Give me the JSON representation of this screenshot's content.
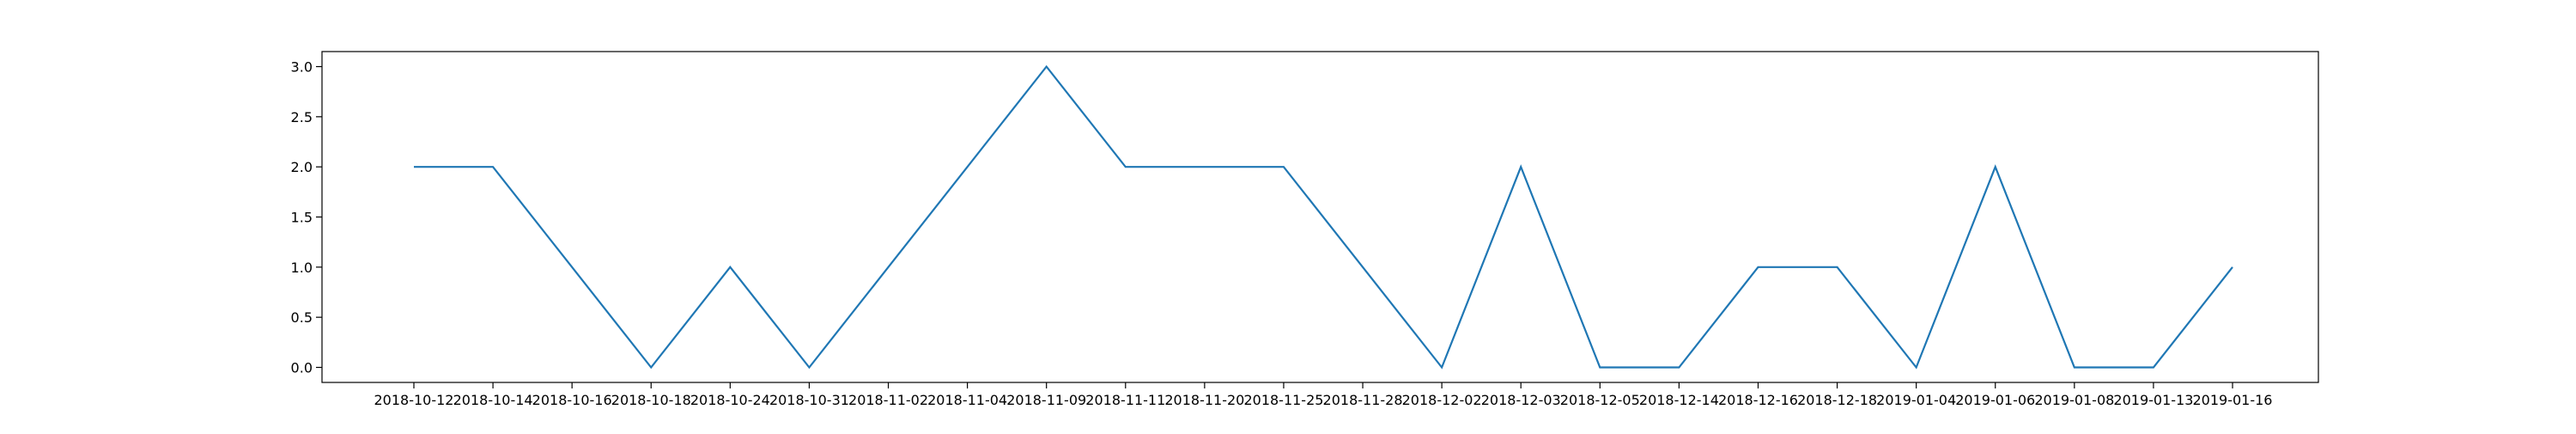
{
  "chart_data": {
    "type": "line",
    "categories": [
      "2018-10-12",
      "2018-10-14",
      "2018-10-16",
      "2018-10-18",
      "2018-10-24",
      "2018-10-31",
      "2018-11-02",
      "2018-11-04",
      "2018-11-09",
      "2018-11-11",
      "2018-11-20",
      "2018-11-25",
      "2018-11-28",
      "2018-12-02",
      "2018-12-03",
      "2018-12-05",
      "2018-12-14",
      "2018-12-16",
      "2018-12-18",
      "2019-01-04",
      "2019-01-06",
      "2019-01-08",
      "2019-01-13",
      "2019-01-16"
    ],
    "values": [
      2,
      2,
      1,
      0,
      1,
      0,
      1,
      2,
      3,
      2,
      2,
      2,
      1,
      0,
      2,
      0,
      0,
      1,
      1,
      0,
      2,
      0,
      0,
      1
    ],
    "y_ticks": [
      "0.0",
      "0.5",
      "1.0",
      "1.5",
      "2.0",
      "2.5",
      "3.0"
    ],
    "y_tick_values": [
      0,
      0.5,
      1,
      1.5,
      2,
      2.5,
      3
    ],
    "ylim": [
      -0.15,
      3.15
    ],
    "title": "",
    "xlabel": "",
    "ylabel": "",
    "grid": false,
    "legend": "none",
    "line_color": "#1f77b4"
  }
}
